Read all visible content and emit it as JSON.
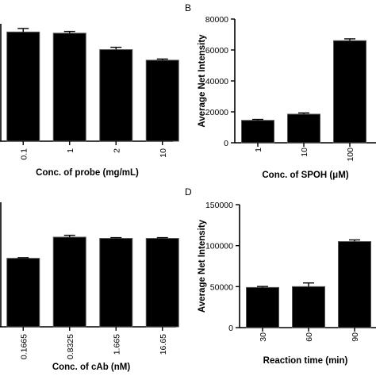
{
  "panels": {
    "A": {
      "letter": ""
    },
    "B": {
      "letter": "B"
    },
    "C": {
      "letter": ""
    },
    "D": {
      "letter": "D"
    }
  },
  "chart_data": [
    {
      "panel": "A",
      "type": "bar",
      "title": "",
      "xlabel": "Conc. of probe (mg/mL)",
      "ylabel": "",
      "categories": [
        "0.1",
        "1",
        "2",
        "10"
      ],
      "values": [
        0.93,
        0.92,
        0.78,
        0.69
      ],
      "errors": [
        0.03,
        0.015,
        0.02,
        0.01
      ],
      "ylim": [
        0,
        1.0
      ],
      "bar_color": "#000000"
    },
    {
      "panel": "B",
      "type": "bar",
      "title": "",
      "xlabel": "Conc. of SPOH (μM)",
      "ylabel": "Average Net Intensity",
      "categories": [
        "1",
        "10",
        "100"
      ],
      "values": [
        14500,
        18500,
        66000
      ],
      "errors": [
        600,
        800,
        1200
      ],
      "ylim": [
        0,
        80000
      ],
      "yticks": [
        "0",
        "20000",
        "40000",
        "60000",
        "80000"
      ],
      "bar_color": "#000000"
    },
    {
      "panel": "C",
      "type": "bar",
      "title": "",
      "xlabel": "Conc. of cAb (nM)",
      "ylabel": "",
      "categories": [
        "0.1665",
        "0.8325",
        "1.665",
        "16.65"
      ],
      "values": [
        0.55,
        0.72,
        0.71,
        0.71
      ],
      "errors": [
        0.005,
        0.015,
        0.006,
        0.006
      ],
      "ylim": [
        0,
        1.0
      ],
      "bar_color": "#000000"
    },
    {
      "panel": "D",
      "type": "bar",
      "title": "",
      "xlabel": "Reaction time (min)",
      "ylabel": "Average Net Intensity",
      "categories": [
        "30",
        "60",
        "90"
      ],
      "values": [
        49000,
        50000,
        105000
      ],
      "errors": [
        1200,
        4500,
        2000
      ],
      "ylim": [
        0,
        150000
      ],
      "yticks": [
        "0",
        "50000",
        "100000",
        "150000"
      ],
      "bar_color": "#000000"
    }
  ]
}
